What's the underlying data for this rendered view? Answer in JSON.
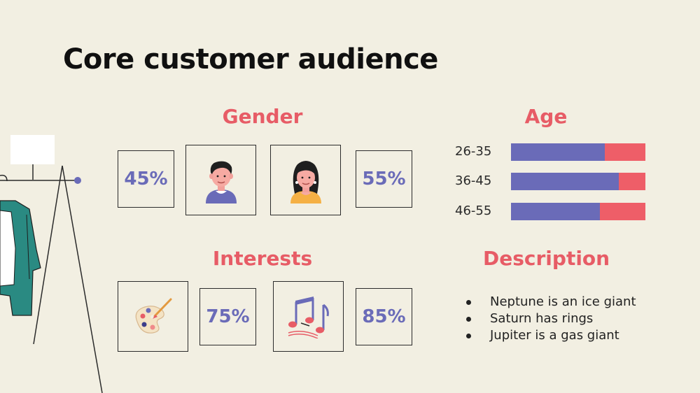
{
  "slide": {
    "title": "Core customer audience"
  },
  "gender": {
    "heading": "Gender",
    "male_percent": "45%",
    "female_percent": "55%",
    "male_icon": "male-avatar-icon",
    "female_icon": "female-avatar-icon"
  },
  "age": {
    "heading": "Age",
    "rows": [
      {
        "label": "26-35",
        "share": 0.7
      },
      {
        "label": "36-45",
        "share": 0.8
      },
      {
        "label": "46-55",
        "share": 0.66
      }
    ]
  },
  "interests": {
    "heading": "Interests",
    "art_percent": "75%",
    "music_percent": "85%",
    "art_icon": "paint-palette-icon",
    "music_icon": "music-notes-icon"
  },
  "description": {
    "heading": "Description",
    "items": [
      "Neptune is an ice giant",
      "Saturn has rings",
      "Jupiter is a gas giant"
    ]
  },
  "colors": {
    "background": "#f2efe2",
    "accent_red": "#e75c66",
    "accent_blue": "#6a6bb8"
  }
}
